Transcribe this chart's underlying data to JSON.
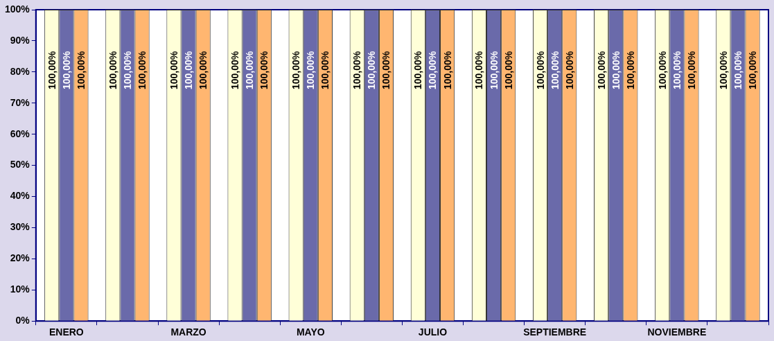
{
  "chart_data": {
    "type": "bar",
    "categories": [
      "ENERO",
      null,
      "MARZO",
      null,
      "MAYO",
      null,
      "JULIO",
      null,
      "SEPTIEMBRE",
      null,
      "NOVIEMBRE",
      null
    ],
    "series": [
      {
        "color": "#ffffd8",
        "values": [
          100,
          100,
          100,
          100,
          100,
          100,
          100,
          100,
          100,
          100,
          100,
          100
        ],
        "value_labels": [
          "100,00%",
          "100,00%",
          "100,00%",
          "100,00%",
          "100,00%",
          "100,00%",
          "100,00%",
          "100,00%",
          "100,00%",
          "100,00%",
          "100,00%",
          "100,00%"
        ]
      },
      {
        "color": "#6a6aaa",
        "values": [
          100,
          100,
          100,
          100,
          100,
          100,
          100,
          100,
          100,
          100,
          100,
          100
        ],
        "value_labels": [
          "100,00%",
          "100,00%",
          "100,00%",
          "100,00%",
          "100,00%",
          "100,00%",
          "100,00%",
          "100,00%",
          "100,00%",
          "100,00%",
          "100,00%",
          "100,00%"
        ]
      },
      {
        "color": "#ffb670",
        "values": [
          100,
          100,
          100,
          100,
          100,
          100,
          100,
          100,
          100,
          100,
          100,
          100
        ],
        "value_labels": [
          "100,00%",
          "100,00%",
          "100,00%",
          "100,00%",
          "100,00%",
          "100,00%",
          "100,00%",
          "100,00%",
          "100,00%",
          "100,00%",
          "100,00%",
          "100,00%"
        ]
      }
    ],
    "ylim": [
      0,
      100
    ],
    "yticks": [
      {
        "value": 0,
        "label": "0%"
      },
      {
        "value": 10,
        "label": "10%"
      },
      {
        "value": 20,
        "label": "20%"
      },
      {
        "value": 30,
        "label": "30%"
      },
      {
        "value": 40,
        "label": "40%"
      },
      {
        "value": 50,
        "label": "50%"
      },
      {
        "value": 60,
        "label": "60%"
      },
      {
        "value": 70,
        "label": "70%"
      },
      {
        "value": 80,
        "label": "80%"
      },
      {
        "value": 90,
        "label": "90%"
      },
      {
        "value": 100,
        "label": "100%"
      }
    ],
    "grid": false,
    "legend": false
  }
}
